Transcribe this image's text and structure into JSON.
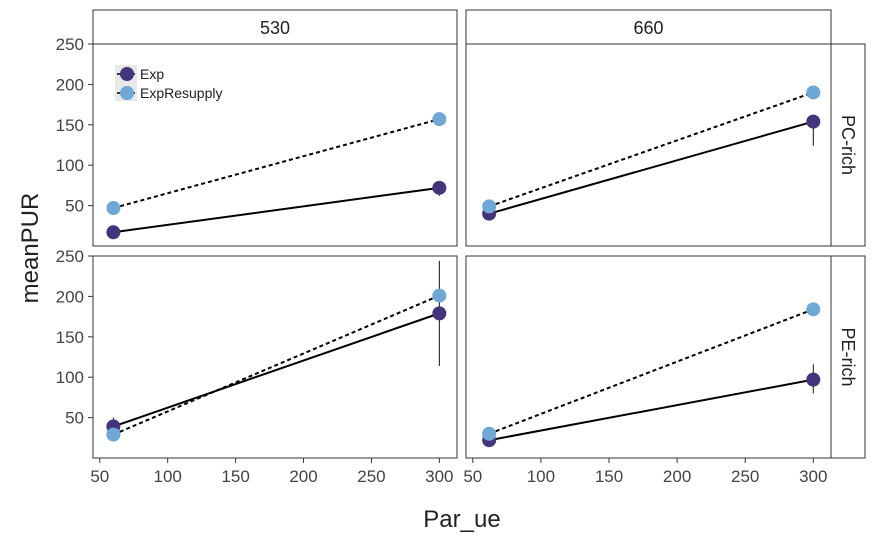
{
  "chart_data": {
    "type": "line",
    "xlabel": "Par_ue",
    "ylabel": "meanPUR",
    "x_ticks": [
      50,
      100,
      150,
      200,
      250,
      300
    ],
    "y_ticks": [
      50,
      100,
      150,
      200,
      250
    ],
    "xlim": [
      45,
      313
    ],
    "ylim": [
      0,
      250
    ],
    "col_strips": [
      "530",
      "660"
    ],
    "row_strips": [
      "PC-rich",
      "PE-rich"
    ],
    "legend": {
      "position": "top-left",
      "entries": [
        "Exp",
        "ExpResupply"
      ]
    },
    "series_styles": [
      {
        "name": "Exp",
        "color": "#45337c",
        "line": "solid"
      },
      {
        "name": "ExpResupply",
        "color": "#6fa8d4",
        "line": "dashed"
      }
    ],
    "panels": [
      {
        "col": 0,
        "row": 0,
        "series": [
          {
            "name": "Exp",
            "points": [
              {
                "x": 60,
                "y": 17
              },
              {
                "x": 300,
                "y": 72,
                "err": [
                  62,
                  80
                ]
              }
            ]
          },
          {
            "name": "ExpResupply",
            "points": [
              {
                "x": 60,
                "y": 47
              },
              {
                "x": 300,
                "y": 157
              }
            ]
          }
        ]
      },
      {
        "col": 1,
        "row": 0,
        "series": [
          {
            "name": "Exp",
            "points": [
              {
                "x": 62,
                "y": 40
              },
              {
                "x": 300,
                "y": 154,
                "err": [
                  124,
                  160
                ]
              }
            ]
          },
          {
            "name": "ExpResupply",
            "points": [
              {
                "x": 62,
                "y": 49
              },
              {
                "x": 300,
                "y": 190
              }
            ]
          }
        ]
      },
      {
        "col": 0,
        "row": 1,
        "series": [
          {
            "name": "Exp",
            "points": [
              {
                "x": 60,
                "y": 39,
                "err": [
                  30,
                  50
                ]
              },
              {
                "x": 300,
                "y": 179,
                "err": [
                  114,
                  244
                ]
              }
            ]
          },
          {
            "name": "ExpResupply",
            "points": [
              {
                "x": 60,
                "y": 29
              },
              {
                "x": 300,
                "y": 201
              }
            ]
          }
        ]
      },
      {
        "col": 1,
        "row": 1,
        "series": [
          {
            "name": "Exp",
            "points": [
              {
                "x": 62,
                "y": 22
              },
              {
                "x": 300,
                "y": 97,
                "err": [
                  80,
                  116
                ]
              }
            ]
          },
          {
            "name": "ExpResupply",
            "points": [
              {
                "x": 62,
                "y": 30
              },
              {
                "x": 300,
                "y": 184
              }
            ]
          }
        ]
      }
    ]
  }
}
